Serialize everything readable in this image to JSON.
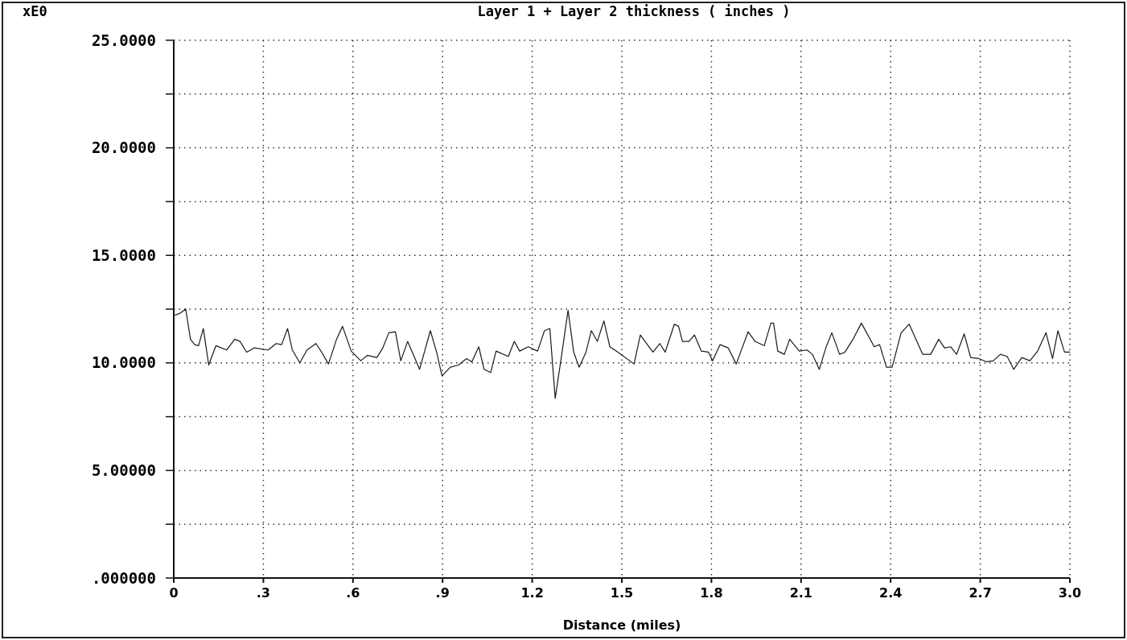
{
  "chart_data": {
    "type": "line",
    "title": "Layer 1 + Layer 2 thickness ( inches )",
    "xlabel": "Distance (miles)",
    "ylabel": "xE0",
    "xlim": [
      0,
      3
    ],
    "ylim": [
      0,
      25
    ],
    "xticks": [
      0,
      {
        "value": 0.3,
        "label": ".3"
      },
      {
        "value": 0.6,
        "label": ".6"
      },
      {
        "value": 0.9,
        "label": ".9"
      },
      1.2,
      1.5,
      1.8,
      2.1,
      2.4,
      2.7,
      {
        "value": 3,
        "label": "3.0"
      }
    ],
    "yticks": [
      {
        "value": 0,
        "label": ".000000"
      },
      {
        "value": 2.5,
        "label": null
      },
      {
        "value": 5,
        "label": "5.00000"
      },
      {
        "value": 7.5,
        "label": null
      },
      {
        "value": 10,
        "label": "10.0000"
      },
      {
        "value": 12.5,
        "label": null
      },
      {
        "value": 15,
        "label": "15.0000"
      },
      {
        "value": 17.5,
        "label": null
      },
      {
        "value": 20,
        "label": "20.0000"
      },
      {
        "value": 22.5,
        "label": null
      },
      {
        "value": 25,
        "label": "25.0000"
      }
    ],
    "grid": true,
    "marker": "none",
    "line_style": "solid",
    "series": [
      {
        "color": "#1a1a1a",
        "x": [
          0.0,
          0.02,
          0.04,
          0.056,
          0.07,
          0.083,
          0.099,
          0.117,
          0.141,
          0.177,
          0.204,
          0.222,
          0.244,
          0.27,
          0.316,
          0.343,
          0.361,
          0.381,
          0.397,
          0.422,
          0.446,
          0.476,
          0.495,
          0.518,
          0.545,
          0.565,
          0.594,
          0.626,
          0.648,
          0.68,
          0.7,
          0.72,
          0.742,
          0.76,
          0.783,
          0.823,
          0.859,
          0.88,
          0.898,
          0.926,
          0.953,
          0.98,
          0.998,
          1.021,
          1.039,
          1.061,
          1.079,
          1.12,
          1.14,
          1.158,
          1.187,
          1.218,
          1.241,
          1.259,
          1.277,
          1.3,
          1.32,
          1.339,
          1.357,
          1.38,
          1.398,
          1.418,
          1.44,
          1.46,
          1.487,
          1.541,
          1.562,
          1.604,
          1.627,
          1.645,
          1.676,
          1.69,
          1.703,
          1.725,
          1.743,
          1.766,
          1.79,
          1.804,
          1.829,
          1.856,
          1.883,
          1.923,
          1.946,
          1.977,
          1.999,
          2.008,
          2.022,
          2.044,
          2.062,
          2.094,
          2.12,
          2.138,
          2.161,
          2.183,
          2.203,
          2.229,
          2.247,
          2.274,
          2.302,
          2.345,
          2.363,
          2.386,
          2.405,
          2.435,
          2.462,
          2.507,
          2.534,
          2.561,
          2.58,
          2.601,
          2.621,
          2.646,
          2.668,
          2.695,
          2.722,
          2.744,
          2.767,
          2.79,
          2.812,
          2.839,
          2.866,
          2.892,
          2.92,
          2.942,
          2.96,
          2.982,
          3.0
        ],
        "values": [
          12.2,
          12.3,
          12.5,
          11.1,
          10.85,
          10.8,
          11.6,
          9.9,
          10.8,
          10.6,
          11.1,
          11.0,
          10.5,
          10.7,
          10.6,
          10.9,
          10.85,
          11.6,
          10.6,
          10.0,
          10.6,
          10.9,
          10.5,
          9.95,
          11.1,
          11.7,
          10.55,
          10.1,
          10.35,
          10.25,
          10.7,
          11.4,
          11.45,
          10.1,
          11.0,
          9.7,
          11.5,
          10.5,
          9.4,
          9.8,
          9.9,
          10.2,
          10.05,
          10.75,
          9.7,
          9.55,
          10.55,
          10.3,
          11.0,
          10.55,
          10.75,
          10.55,
          11.5,
          11.6,
          8.35,
          10.5,
          12.45,
          10.5,
          9.8,
          10.5,
          11.5,
          11.0,
          11.95,
          10.75,
          10.5,
          9.95,
          11.3,
          10.5,
          10.9,
          10.5,
          11.8,
          11.7,
          11.0,
          11.0,
          11.3,
          10.55,
          10.5,
          10.1,
          10.85,
          10.7,
          9.95,
          11.45,
          11.0,
          10.8,
          11.85,
          11.85,
          10.55,
          10.4,
          11.1,
          10.55,
          10.6,
          10.4,
          9.7,
          10.7,
          11.4,
          10.4,
          10.5,
          11.1,
          11.85,
          10.75,
          10.85,
          9.8,
          9.8,
          11.4,
          11.8,
          10.4,
          10.4,
          11.1,
          10.7,
          10.75,
          10.4,
          11.35,
          10.25,
          10.2,
          10.05,
          10.1,
          10.4,
          10.3,
          9.7,
          10.25,
          10.1,
          10.55,
          11.4,
          10.2,
          11.5,
          10.5,
          10.5
        ]
      }
    ]
  }
}
